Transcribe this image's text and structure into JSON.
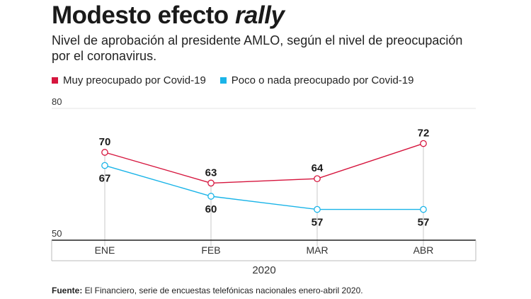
{
  "title_main": "Modesto efecto",
  "title_emph": "rally",
  "subtitle": "Nivel de aprobación al presidente AMLO, según el nivel de preocupación por el coronavirus.",
  "source_label": "Fuente:",
  "source_text": " El Financiero, serie de encuestas telefónicas nacionales enero-abril 2020.",
  "chart_data": {
    "type": "line",
    "categories": [
      "ENE",
      "FEB",
      "MAR",
      "ABR"
    ],
    "xlabel": "2020",
    "ylim": [
      50,
      80
    ],
    "yticks": [
      80,
      50
    ],
    "series": [
      {
        "name": "Muy preocupado por Covid-19",
        "color": "#d6163e",
        "values": [
          70,
          63,
          64,
          72
        ]
      },
      {
        "name": "Poco o nada preocupado por Covid-19",
        "color": "#1ab4e8",
        "values": [
          67,
          60,
          57,
          57
        ]
      }
    ]
  }
}
